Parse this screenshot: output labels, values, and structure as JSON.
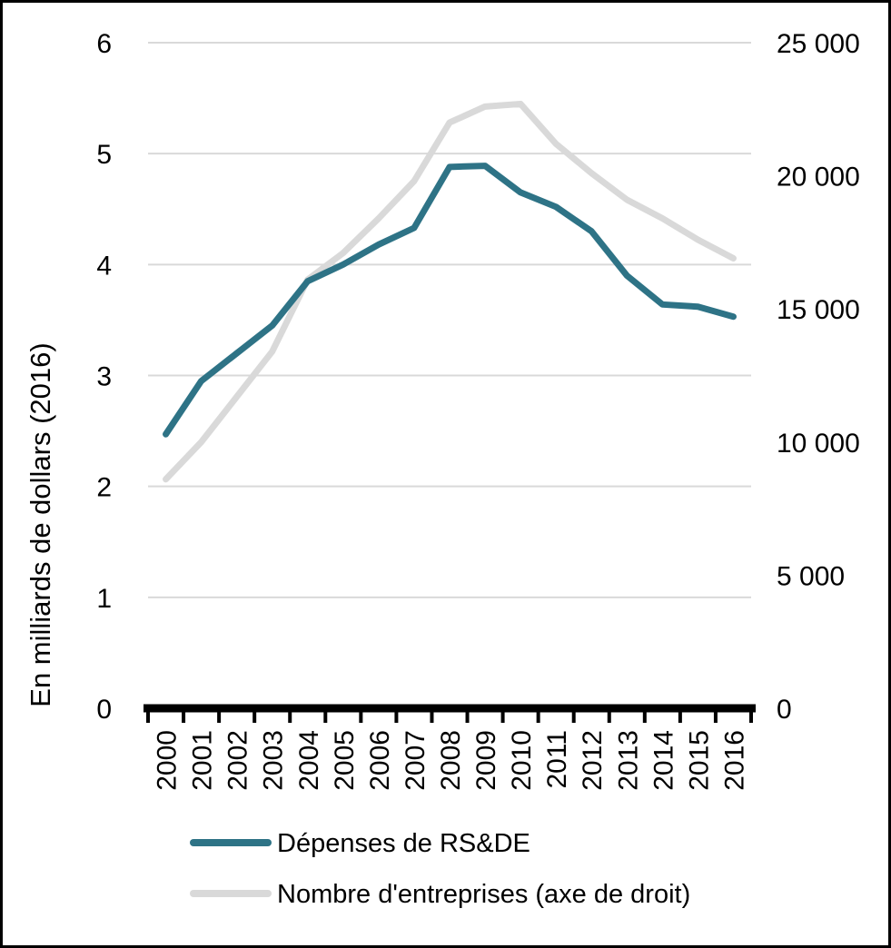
{
  "chart_data": {
    "type": "line",
    "categories": [
      "2000",
      "2001",
      "2002",
      "2003",
      "2004",
      "2005",
      "2006",
      "2007",
      "2008",
      "2009",
      "2010",
      "2011",
      "2012",
      "2013",
      "2014",
      "2015",
      "2016"
    ],
    "series": [
      {
        "name": "Dépenses de RS&DE",
        "axis": "left",
        "color": "#2e7386",
        "values": [
          2.47,
          2.95,
          3.2,
          3.45,
          3.85,
          4.0,
          4.18,
          4.33,
          4.88,
          4.89,
          4.65,
          4.52,
          4.3,
          3.9,
          3.64,
          3.62,
          3.53
        ]
      },
      {
        "name": "Nombre d'entreprises (axe de droit)",
        "axis": "right",
        "color": "#d9d9d9",
        "values": [
          8600,
          10000,
          11700,
          13400,
          16100,
          17100,
          18400,
          19800,
          22000,
          22600,
          22700,
          21200,
          20100,
          19100,
          18400,
          17600,
          16900
        ]
      }
    ],
    "left_axis": {
      "title": "En milliards de dollars (2016)",
      "lim": [
        0,
        6
      ],
      "ticks": [
        "0",
        "1",
        "2",
        "3",
        "4",
        "5",
        "6"
      ]
    },
    "right_axis": {
      "lim": [
        0,
        25000
      ],
      "ticks": [
        "0",
        "5 000",
        "10 000",
        "15 000",
        "20 000",
        "25 000"
      ]
    },
    "grid": true,
    "legend_position": "bottom",
    "grid_color": "#d9d9d9",
    "axis_color": "#000000"
  }
}
